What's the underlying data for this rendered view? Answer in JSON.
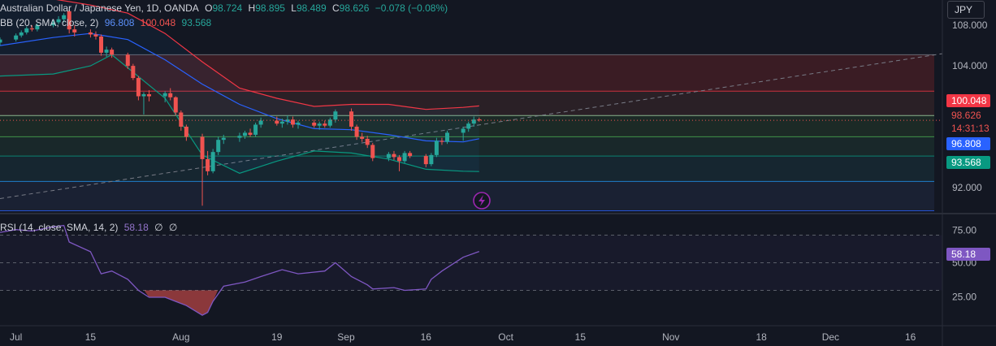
{
  "header": {
    "symbol": "Australian Dollar / Japanese Yen, 1D, OANDA",
    "o_label": "O",
    "o": "98.724",
    "h_label": "H",
    "h": "98.895",
    "l_label": "L",
    "l": "98.489",
    "c_label": "C",
    "c": "98.626",
    "change": "−0.078 (−0.08%)"
  },
  "bb_legend": {
    "label": "BB (20, SMA, close, 2)",
    "basis": "96.808",
    "upper": "100.048",
    "lower": "93.568"
  },
  "rsi_legend": {
    "label": "RSI (14, close, SMA, 14, 2)",
    "value": "58.18",
    "extra1": "∅",
    "extra2": "∅"
  },
  "currency_button": "JPY",
  "price_axis": {
    "ticks": [
      "108.000",
      "104.000",
      "92.000"
    ],
    "upper_tag": "100.048",
    "last_price": "98.626",
    "countdown": "14:31:13",
    "basis_tag": "96.808",
    "lower_tag": "93.568"
  },
  "rsi_axis": {
    "ticks": [
      "75.00",
      "50.00",
      "25.00"
    ],
    "value_tag": "58.18"
  },
  "time_axis": {
    "ticks": [
      "Jul",
      "15",
      "Aug",
      "19",
      "Sep",
      "16",
      "Oct",
      "15",
      "Nov",
      "18",
      "Dec",
      "16"
    ]
  },
  "colors": {
    "up": "#26a69a",
    "down": "#ef5350",
    "bb_basis": "#2962ff",
    "bb_upper": "#f23645",
    "bb_lower": "#089981",
    "rsi": "#7e57c2",
    "background": "#131722"
  },
  "chart_data": [
    {
      "type": "candlestick",
      "title": "Australian Dollar / Japanese Yen, 1D, OANDA",
      "ylim": [
        89.5,
        110.5
      ],
      "time_ticks": [
        "Jul",
        "15",
        "Aug",
        "19",
        "Sep",
        "16",
        "Oct",
        "15",
        "Nov",
        "18",
        "Dec",
        "16"
      ],
      "x_range": [
        "2024-06-28",
        "2024-12-22"
      ],
      "candles": [
        {
          "d": "2024-06-28",
          "o": 106.3,
          "h": 106.8,
          "l": 106.0,
          "c": 106.6
        },
        {
          "d": "2024-07-01",
          "o": 106.6,
          "h": 107.2,
          "l": 106.4,
          "c": 107.0
        },
        {
          "d": "2024-07-02",
          "o": 107.0,
          "h": 107.5,
          "l": 106.8,
          "c": 107.3
        },
        {
          "d": "2024-07-03",
          "o": 107.3,
          "h": 107.9,
          "l": 107.1,
          "c": 107.7
        },
        {
          "d": "2024-07-04",
          "o": 107.7,
          "h": 108.0,
          "l": 107.4,
          "c": 107.6
        },
        {
          "d": "2024-07-05",
          "o": 107.6,
          "h": 108.2,
          "l": 107.4,
          "c": 108.0
        },
        {
          "d": "2024-07-08",
          "o": 108.0,
          "h": 108.6,
          "l": 107.8,
          "c": 108.3
        },
        {
          "d": "2024-07-09",
          "o": 108.3,
          "h": 108.9,
          "l": 108.1,
          "c": 108.6
        },
        {
          "d": "2024-07-10",
          "o": 108.6,
          "h": 109.2,
          "l": 108.3,
          "c": 109.0
        },
        {
          "d": "2024-07-11",
          "o": 109.4,
          "h": 109.6,
          "l": 107.2,
          "c": 107.6
        },
        {
          "d": "2024-07-12",
          "o": 107.6,
          "h": 108.0,
          "l": 106.9,
          "c": 107.3
        },
        {
          "d": "2024-07-15",
          "o": 107.3,
          "h": 107.6,
          "l": 106.8,
          "c": 107.1
        },
        {
          "d": "2024-07-16",
          "o": 107.1,
          "h": 107.4,
          "l": 106.6,
          "c": 106.9
        },
        {
          "d": "2024-07-17",
          "o": 106.9,
          "h": 107.1,
          "l": 105.0,
          "c": 105.3
        },
        {
          "d": "2024-07-18",
          "o": 105.3,
          "h": 105.9,
          "l": 104.9,
          "c": 105.6
        },
        {
          "d": "2024-07-19",
          "o": 105.6,
          "h": 105.8,
          "l": 104.8,
          "c": 105.1
        },
        {
          "d": "2024-07-22",
          "o": 105.1,
          "h": 105.3,
          "l": 103.7,
          "c": 104.0
        },
        {
          "d": "2024-07-23",
          "o": 104.0,
          "h": 104.2,
          "l": 102.6,
          "c": 102.8
        },
        {
          "d": "2024-07-24",
          "o": 102.8,
          "h": 103.0,
          "l": 100.6,
          "c": 101.0
        },
        {
          "d": "2024-07-25",
          "o": 101.0,
          "h": 101.4,
          "l": 99.2,
          "c": 101.2
        },
        {
          "d": "2024-07-26",
          "o": 101.2,
          "h": 101.6,
          "l": 100.5,
          "c": 101.0
        },
        {
          "d": "2024-07-29",
          "o": 101.0,
          "h": 101.5,
          "l": 100.4,
          "c": 101.3
        },
        {
          "d": "2024-07-30",
          "o": 101.3,
          "h": 101.8,
          "l": 100.6,
          "c": 100.9
        },
        {
          "d": "2024-07-31",
          "o": 100.9,
          "h": 101.0,
          "l": 99.1,
          "c": 99.4
        },
        {
          "d": "2024-08-01",
          "o": 99.4,
          "h": 99.6,
          "l": 97.6,
          "c": 98.0
        },
        {
          "d": "2024-08-02",
          "o": 98.0,
          "h": 98.2,
          "l": 96.6,
          "c": 97.0
        },
        {
          "d": "2024-08-05",
          "o": 97.0,
          "h": 97.3,
          "l": 90.2,
          "c": 94.8
        },
        {
          "d": "2024-08-06",
          "o": 94.8,
          "h": 95.6,
          "l": 93.2,
          "c": 93.6
        },
        {
          "d": "2024-08-07",
          "o": 93.6,
          "h": 95.8,
          "l": 93.4,
          "c": 95.5
        },
        {
          "d": "2024-08-08",
          "o": 95.5,
          "h": 97.0,
          "l": 95.2,
          "c": 96.7
        },
        {
          "d": "2024-08-09",
          "o": 96.7,
          "h": 97.2,
          "l": 96.3,
          "c": 96.9
        },
        {
          "d": "2024-08-12",
          "o": 96.9,
          "h": 97.4,
          "l": 96.5,
          "c": 97.1
        },
        {
          "d": "2024-08-13",
          "o": 97.1,
          "h": 97.6,
          "l": 96.8,
          "c": 97.4
        },
        {
          "d": "2024-08-14",
          "o": 97.4,
          "h": 97.8,
          "l": 97.0,
          "c": 97.2
        },
        {
          "d": "2024-08-15",
          "o": 97.2,
          "h": 98.4,
          "l": 97.0,
          "c": 98.2
        },
        {
          "d": "2024-08-16",
          "o": 98.2,
          "h": 98.9,
          "l": 97.9,
          "c": 98.6
        },
        {
          "d": "2024-08-19",
          "o": 98.6,
          "h": 99.0,
          "l": 98.1,
          "c": 98.3
        },
        {
          "d": "2024-08-20",
          "o": 98.3,
          "h": 98.8,
          "l": 97.9,
          "c": 98.5
        },
        {
          "d": "2024-08-21",
          "o": 98.5,
          "h": 99.1,
          "l": 98.2,
          "c": 98.7
        },
        {
          "d": "2024-08-22",
          "o": 98.7,
          "h": 99.0,
          "l": 97.9,
          "c": 98.2
        },
        {
          "d": "2024-08-23",
          "o": 98.2,
          "h": 98.6,
          "l": 97.8,
          "c": 98.4
        },
        {
          "d": "2024-08-26",
          "o": 98.4,
          "h": 98.7,
          "l": 97.9,
          "c": 98.1
        },
        {
          "d": "2024-08-27",
          "o": 98.1,
          "h": 98.5,
          "l": 97.7,
          "c": 98.3
        },
        {
          "d": "2024-08-28",
          "o": 98.3,
          "h": 98.6,
          "l": 97.9,
          "c": 98.1
        },
        {
          "d": "2024-08-29",
          "o": 98.1,
          "h": 98.9,
          "l": 97.9,
          "c": 98.7
        },
        {
          "d": "2024-08-30",
          "o": 98.7,
          "h": 99.7,
          "l": 98.4,
          "c": 99.5
        },
        {
          "d": "2024-09-02",
          "o": 99.5,
          "h": 99.8,
          "l": 97.6,
          "c": 98.0
        },
        {
          "d": "2024-09-03",
          "o": 98.0,
          "h": 98.2,
          "l": 96.7,
          "c": 97.0
        },
        {
          "d": "2024-09-04",
          "o": 97.0,
          "h": 97.4,
          "l": 96.5,
          "c": 96.8
        },
        {
          "d": "2024-09-05",
          "o": 96.8,
          "h": 97.1,
          "l": 95.9,
          "c": 96.2
        },
        {
          "d": "2024-09-06",
          "o": 96.2,
          "h": 96.4,
          "l": 94.6,
          "c": 94.9
        },
        {
          "d": "2024-09-09",
          "o": 94.9,
          "h": 95.5,
          "l": 94.6,
          "c": 95.3
        },
        {
          "d": "2024-09-10",
          "o": 95.3,
          "h": 95.6,
          "l": 94.7,
          "c": 95.0
        },
        {
          "d": "2024-09-11",
          "o": 95.0,
          "h": 95.2,
          "l": 93.6,
          "c": 94.6
        },
        {
          "d": "2024-09-12",
          "o": 94.6,
          "h": 95.6,
          "l": 94.4,
          "c": 95.4
        },
        {
          "d": "2024-09-13",
          "o": 95.4,
          "h": 95.6,
          "l": 94.9,
          "c": 95.1
        },
        {
          "d": "2024-09-16",
          "o": 95.1,
          "h": 95.3,
          "l": 94.0,
          "c": 94.3
        },
        {
          "d": "2024-09-17",
          "o": 94.3,
          "h": 95.4,
          "l": 94.1,
          "c": 95.2
        },
        {
          "d": "2024-09-18",
          "o": 95.2,
          "h": 96.9,
          "l": 95.0,
          "c": 96.6
        },
        {
          "d": "2024-09-19",
          "o": 96.6,
          "h": 96.9,
          "l": 96.2,
          "c": 96.5
        },
        {
          "d": "2024-09-20",
          "o": 96.5,
          "h": 97.6,
          "l": 96.3,
          "c": 97.4
        },
        {
          "d": "2024-09-23",
          "o": 97.4,
          "h": 98.0,
          "l": 96.6,
          "c": 97.8
        },
        {
          "d": "2024-09-24",
          "o": 97.8,
          "h": 98.5,
          "l": 97.5,
          "c": 98.3
        },
        {
          "d": "2024-09-25",
          "o": 98.3,
          "h": 99.0,
          "l": 98.0,
          "c": 98.7
        },
        {
          "d": "2024-09-26",
          "o": 98.72,
          "h": 98.9,
          "l": 98.49,
          "c": 98.63
        }
      ],
      "bb_upper": {
        "x": [
          "2024-06-28",
          "2024-07-08",
          "2024-07-15",
          "2024-07-22",
          "2024-07-29",
          "2024-08-05",
          "2024-08-12",
          "2024-08-19",
          "2024-08-26",
          "2024-09-02",
          "2024-09-09",
          "2024-09-16",
          "2024-09-23",
          "2024-09-26"
        ],
        "values": [
          110.6,
          110.6,
          110.0,
          109.2,
          107.2,
          104.4,
          101.8,
          100.8,
          100.0,
          100.2,
          100.2,
          99.7,
          99.9,
          100.05
        ]
      },
      "bb_basis": {
        "x": [
          "2024-06-28",
          "2024-07-08",
          "2024-07-15",
          "2024-07-22",
          "2024-07-29",
          "2024-08-05",
          "2024-08-12",
          "2024-08-19",
          "2024-08-26",
          "2024-09-02",
          "2024-09-09",
          "2024-09-16",
          "2024-09-23",
          "2024-09-26"
        ],
        "values": [
          106.0,
          106.8,
          107.2,
          106.6,
          104.6,
          102.2,
          100.2,
          98.8,
          97.8,
          97.7,
          97.2,
          96.6,
          96.5,
          96.81
        ]
      },
      "bb_lower": {
        "x": [
          "2024-06-28",
          "2024-07-08",
          "2024-07-15",
          "2024-07-19",
          "2024-07-29",
          "2024-08-05",
          "2024-08-12",
          "2024-08-19",
          "2024-08-26",
          "2024-09-02",
          "2024-09-09",
          "2024-09-16",
          "2024-09-23",
          "2024-09-26"
        ],
        "values": [
          103.0,
          103.2,
          104.0,
          105.1,
          100.8,
          95.2,
          93.4,
          94.6,
          95.6,
          95.4,
          94.8,
          93.8,
          93.6,
          93.57
        ]
      },
      "levels": [
        105.1,
        101.5,
        99.1,
        97.0,
        95.1,
        92.6,
        89.7
      ],
      "trendline": {
        "x": [
          "2024-06-28",
          "2024-12-22"
        ],
        "values": [
          90.9,
          105.2
        ]
      }
    },
    {
      "type": "line",
      "title": "RSI (14, close, SMA, 14, 2)",
      "ylim": [
        5,
        85
      ],
      "levels": [
        70,
        50,
        30
      ],
      "x": [
        "2024-06-28",
        "2024-07-01",
        "2024-07-04",
        "2024-07-08",
        "2024-07-10",
        "2024-07-11",
        "2024-07-15",
        "2024-07-17",
        "2024-07-19",
        "2024-07-22",
        "2024-07-24",
        "2024-07-26",
        "2024-07-29",
        "2024-07-31",
        "2024-08-02",
        "2024-08-05",
        "2024-08-06",
        "2024-08-07",
        "2024-08-09",
        "2024-08-13",
        "2024-08-16",
        "2024-08-20",
        "2024-08-23",
        "2024-08-28",
        "2024-08-30",
        "2024-09-02",
        "2024-09-05",
        "2024-09-06",
        "2024-09-10",
        "2024-09-12",
        "2024-09-16",
        "2024-09-17",
        "2024-09-19",
        "2024-09-23",
        "2024-09-26"
      ],
      "values": [
        72,
        74,
        73,
        76,
        77,
        65,
        58,
        42,
        44,
        38,
        30,
        25,
        25,
        22,
        19,
        12,
        14,
        22,
        33,
        36,
        40,
        45,
        42,
        44,
        50,
        40,
        34,
        31,
        32,
        30,
        31,
        38,
        44,
        54,
        58.18
      ]
    }
  ]
}
